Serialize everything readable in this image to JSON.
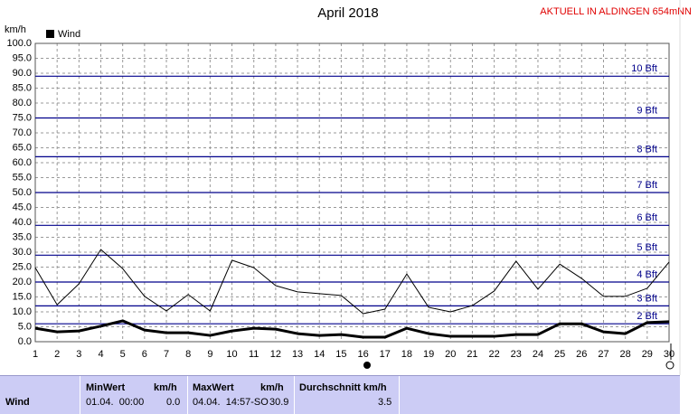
{
  "chart_data": {
    "type": "line",
    "title": "April 2018",
    "station": "AKTUELL IN ALDINGEN 654mNN",
    "y_unit": "km/h",
    "x": [
      1,
      2,
      3,
      4,
      5,
      6,
      7,
      8,
      9,
      10,
      11,
      12,
      13,
      14,
      15,
      16,
      17,
      18,
      19,
      20,
      21,
      22,
      23,
      24,
      25,
      26,
      27,
      28,
      29,
      30
    ],
    "xlim": [
      1,
      30
    ],
    "ylim": [
      0,
      100
    ],
    "yticks": [
      {
        "value": 0,
        "label": "0.0"
      },
      {
        "value": 5,
        "label": "5.0"
      },
      {
        "value": 10,
        "label": "10.0"
      },
      {
        "value": 15,
        "label": "15.0"
      },
      {
        "value": 20,
        "label": "20.0"
      },
      {
        "value": 25,
        "label": "25.0"
      },
      {
        "value": 30,
        "label": "30.0"
      },
      {
        "value": 35,
        "label": "35.0"
      },
      {
        "value": 40,
        "label": "40.0"
      },
      {
        "value": 45,
        "label": "45.0"
      },
      {
        "value": 50,
        "label": "50.0"
      },
      {
        "value": 55,
        "label": "55.0"
      },
      {
        "value": 60,
        "label": "60.0"
      },
      {
        "value": 65,
        "label": "65.0"
      },
      {
        "value": 70,
        "label": "70.0"
      },
      {
        "value": 75,
        "label": "75.0"
      },
      {
        "value": 80,
        "label": "80.0"
      },
      {
        "value": 85,
        "label": "85.0"
      },
      {
        "value": 90,
        "label": "90.0"
      },
      {
        "value": 95,
        "label": "95.0"
      },
      {
        "value": 100,
        "label": "100.0"
      }
    ],
    "grid": true,
    "reference_lines": {
      "color": "#00008b",
      "lines": [
        {
          "value": 6,
          "label": "2 Bft"
        },
        {
          "value": 12,
          "label": "3 Bft"
        },
        {
          "value": 20,
          "label": "4 Bft"
        },
        {
          "value": 29,
          "label": "5 Bft"
        },
        {
          "value": 39,
          "label": "6 Bft"
        },
        {
          "value": 50,
          "label": "7 Bft"
        },
        {
          "value": 62,
          "label": "8 Bft"
        },
        {
          "value": 75,
          "label": "9 Bft"
        },
        {
          "value": 89,
          "label": "10 Bft"
        }
      ]
    },
    "series": [
      {
        "name": "Wind",
        "color": "#000000",
        "width": 3,
        "values": [
          4.5,
          3.3,
          3.6,
          5.2,
          7.0,
          3.9,
          3.0,
          3.0,
          2.1,
          3.6,
          4.5,
          4.2,
          2.7,
          2.1,
          2.4,
          1.5,
          1.5,
          4.5,
          2.7,
          1.8,
          1.8,
          1.8,
          2.4,
          2.4,
          6.0,
          6.0,
          3.3,
          2.7,
          6.4,
          6.7
        ]
      },
      {
        "color": "#000000",
        "width": 1,
        "values": [
          24.8,
          12.4,
          19.4,
          30.9,
          24.5,
          15.2,
          10.3,
          15.8,
          10.3,
          27.3,
          24.8,
          18.8,
          16.7,
          16.1,
          15.5,
          9.4,
          10.9,
          22.7,
          11.5,
          10.0,
          12.1,
          17.0,
          27.0,
          17.6,
          26.0,
          21.2,
          15.2,
          15.2,
          17.9,
          26.7
        ]
      }
    ]
  },
  "table": {
    "header": [
      "MinWert",
      "km/h",
      "MaxWert",
      "km/h",
      "Durchschnitt km/h"
    ],
    "rows": [
      [
        "Wind",
        "01.04.  00:00",
        "0.0",
        "04.04.  14:57-SO",
        "30.9",
        "3.5"
      ]
    ]
  }
}
